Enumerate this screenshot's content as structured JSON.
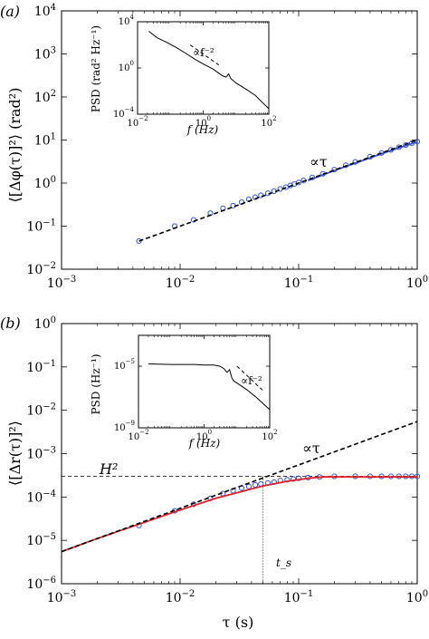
{
  "chart_data": [
    {
      "type": "line",
      "panel_label": "(a)",
      "xlim": [
        0.001,
        1
      ],
      "ylim": [
        0.01,
        10000
      ],
      "x_ticks": [
        0.001,
        0.01,
        0.1,
        1
      ],
      "y_ticks": [
        0.01,
        0.1,
        1,
        10,
        100,
        1000,
        10000
      ],
      "x_tick_labels": [
        "10^-3",
        "10^-2",
        "10^-1",
        "10^0"
      ],
      "y_tick_labels": [
        "10^-2",
        "10^-1",
        "10^0",
        "10^1",
        "10^2",
        "10^3",
        "10^4"
      ],
      "ylabel": "⟨[Δφ(τ)]²⟩ (rad²)",
      "annotation": "∝τ",
      "series": [
        {
          "style": "circles",
          "color": "#3355dd",
          "x": [
            0.0045,
            0.009,
            0.013,
            0.018,
            0.023,
            0.028,
            0.033,
            0.038,
            0.043,
            0.048,
            0.055,
            0.062,
            0.07,
            0.078,
            0.085,
            0.092,
            0.1,
            0.11,
            0.13,
            0.16,
            0.2,
            0.25,
            0.3,
            0.4,
            0.5,
            0.6,
            0.7,
            0.8,
            0.9,
            1.0
          ],
          "y": [
            0.045,
            0.1,
            0.14,
            0.2,
            0.26,
            0.3,
            0.36,
            0.42,
            0.47,
            0.52,
            0.58,
            0.65,
            0.73,
            0.8,
            0.88,
            0.95,
            1.03,
            1.15,
            1.35,
            1.65,
            2.05,
            2.6,
            3.1,
            4.1,
            5.0,
            5.9,
            6.8,
            7.6,
            8.4,
            9.2
          ]
        },
        {
          "style": "solid",
          "color": "#3355dd",
          "x": [
            0.12,
            0.2,
            0.3,
            0.5,
            0.7,
            1.0
          ],
          "y": [
            1.15,
            1.95,
            2.9,
            4.8,
            6.6,
            9.0
          ]
        },
        {
          "style": "dashed",
          "color": "#000000",
          "x": [
            0.0045,
            1.0
          ],
          "y": [
            0.045,
            10.0
          ]
        }
      ],
      "inset": {
        "xlabel": "f (Hz)",
        "ylabel": "PSD (rad² Hz⁻¹)",
        "annotation": "∝f⁻²",
        "xlim": [
          0.01,
          100
        ],
        "ylim": [
          0.0001,
          10000
        ],
        "x_ticks": [
          0.01,
          1,
          100
        ],
        "y_ticks": [
          0.0001,
          1,
          10000
        ],
        "x_tick_labels": [
          "10^-2",
          "10^0",
          "10^2"
        ],
        "y_tick_labels": [
          "10^-4",
          "10^0",
          "10^4"
        ],
        "series": [
          {
            "style": "solid",
            "color": "#000000",
            "x": [
              0.022,
              0.04,
              0.08,
              0.15,
              0.3,
              0.6,
              1,
              2,
              3,
              4,
              5,
              6,
              7,
              10,
              20,
              40,
              60,
              100
            ],
            "y": [
              1500,
              400,
              160,
              60,
              18,
              5,
              2.2,
              0.8,
              0.35,
              0.2,
              0.16,
              0.3,
              0.12,
              0.05,
              0.015,
              0.004,
              0.0012,
              0.0003
            ]
          },
          {
            "style": "dashed",
            "color": "#000000",
            "x": [
              0.4,
              3
            ],
            "y": [
              100,
              1.8
            ]
          }
        ]
      }
    },
    {
      "type": "line",
      "panel_label": "(b)",
      "xlim": [
        0.001,
        1
      ],
      "ylim": [
        1e-06,
        1
      ],
      "x_ticks": [
        0.001,
        0.01,
        0.1,
        1
      ],
      "y_ticks": [
        1e-06,
        1e-05,
        0.0001,
        0.001,
        0.01,
        0.1,
        1
      ],
      "x_tick_labels": [
        "10^-3",
        "10^-2",
        "10^-1",
        "10^0"
      ],
      "y_tick_labels": [
        "10^-6",
        "10^-5",
        "10^-4",
        "10^-3",
        "10^-2",
        "10^-1",
        "10^0"
      ],
      "xlabel": "τ (s)",
      "ylabel": "⟨[Δr(τ)]²⟩",
      "annotation": "∝τ",
      "h2_label": "H²",
      "h2_value": 0.0003,
      "ts_label": "t_s",
      "ts_value": 0.05,
      "series": [
        {
          "style": "circles",
          "color": "#3355dd",
          "x": [
            0.0045,
            0.009,
            0.013,
            0.018,
            0.023,
            0.028,
            0.033,
            0.038,
            0.043,
            0.048,
            0.055,
            0.062,
            0.07,
            0.08,
            0.09,
            0.1,
            0.12,
            0.15,
            0.2,
            0.3,
            0.4,
            0.5,
            0.6,
            0.7,
            0.8,
            0.9,
            1.0
          ],
          "y": [
            2.2e-05,
            4.8e-05,
            6.8e-05,
            9.3e-05,
            0.00012,
            0.00014,
            0.00016,
            0.000175,
            0.00019,
            0.0002,
            0.00021,
            0.00022,
            0.00024,
            0.00025,
            0.00026,
            0.00027,
            0.00028,
            0.00029,
            0.0003,
            0.0003,
            0.0003,
            0.0003,
            0.0003,
            0.0003,
            0.0003,
            0.0003,
            0.0003
          ]
        },
        {
          "style": "solid",
          "color": "#e0202a",
          "x": [
            0.001,
            0.002,
            0.005,
            0.01,
            0.02,
            0.05,
            0.08,
            0.12,
            0.16,
            0.3,
            1.0
          ],
          "y": [
            5.5e-06,
            1.1e-05,
            2.6e-05,
            5e-05,
            9.3e-05,
            0.00018,
            0.00023,
            0.00027,
            0.00029,
            0.00029,
            0.00029
          ]
        },
        {
          "style": "dashed",
          "color": "#000000",
          "x": [
            0.001,
            1.0
          ],
          "y": [
            5.5e-06,
            0.0055
          ]
        }
      ],
      "inset": {
        "xlabel": "f (Hz)",
        "ylabel": "PSD (Hz⁻¹)",
        "annotation": "∝f⁻²",
        "xlim": [
          0.01,
          100
        ],
        "ylim": [
          1e-09,
          0.001
        ],
        "x_ticks": [
          0.01,
          1,
          100
        ],
        "y_ticks": [
          1e-09,
          1e-05
        ],
        "x_tick_labels": [
          "10^-2",
          "10^0",
          "10^2"
        ],
        "y_tick_labels": [
          "10^-9",
          "10^-5"
        ],
        "series": [
          {
            "style": "solid",
            "color": "#000000",
            "x": [
              0.02,
              0.1,
              0.5,
              1,
              2,
              3,
              4,
              5,
              6,
              7,
              8,
              10,
              20,
              40,
              70,
              100
            ],
            "y": [
              1.4e-05,
              1.3e-05,
              1.3e-05,
              1.2e-05,
              1.2e-05,
              1e-05,
              7e-06,
              4e-06,
              6e-06,
              1.8e-06,
              1.1e-06,
              8e-07,
              3e-07,
              9e-08,
              3e-08,
              1.5e-08
            ]
          },
          {
            "style": "dashed",
            "color": "#000000",
            "x": [
              10,
              60
            ],
            "y": [
              1e-05,
              2.8e-07
            ]
          }
        ]
      }
    }
  ]
}
